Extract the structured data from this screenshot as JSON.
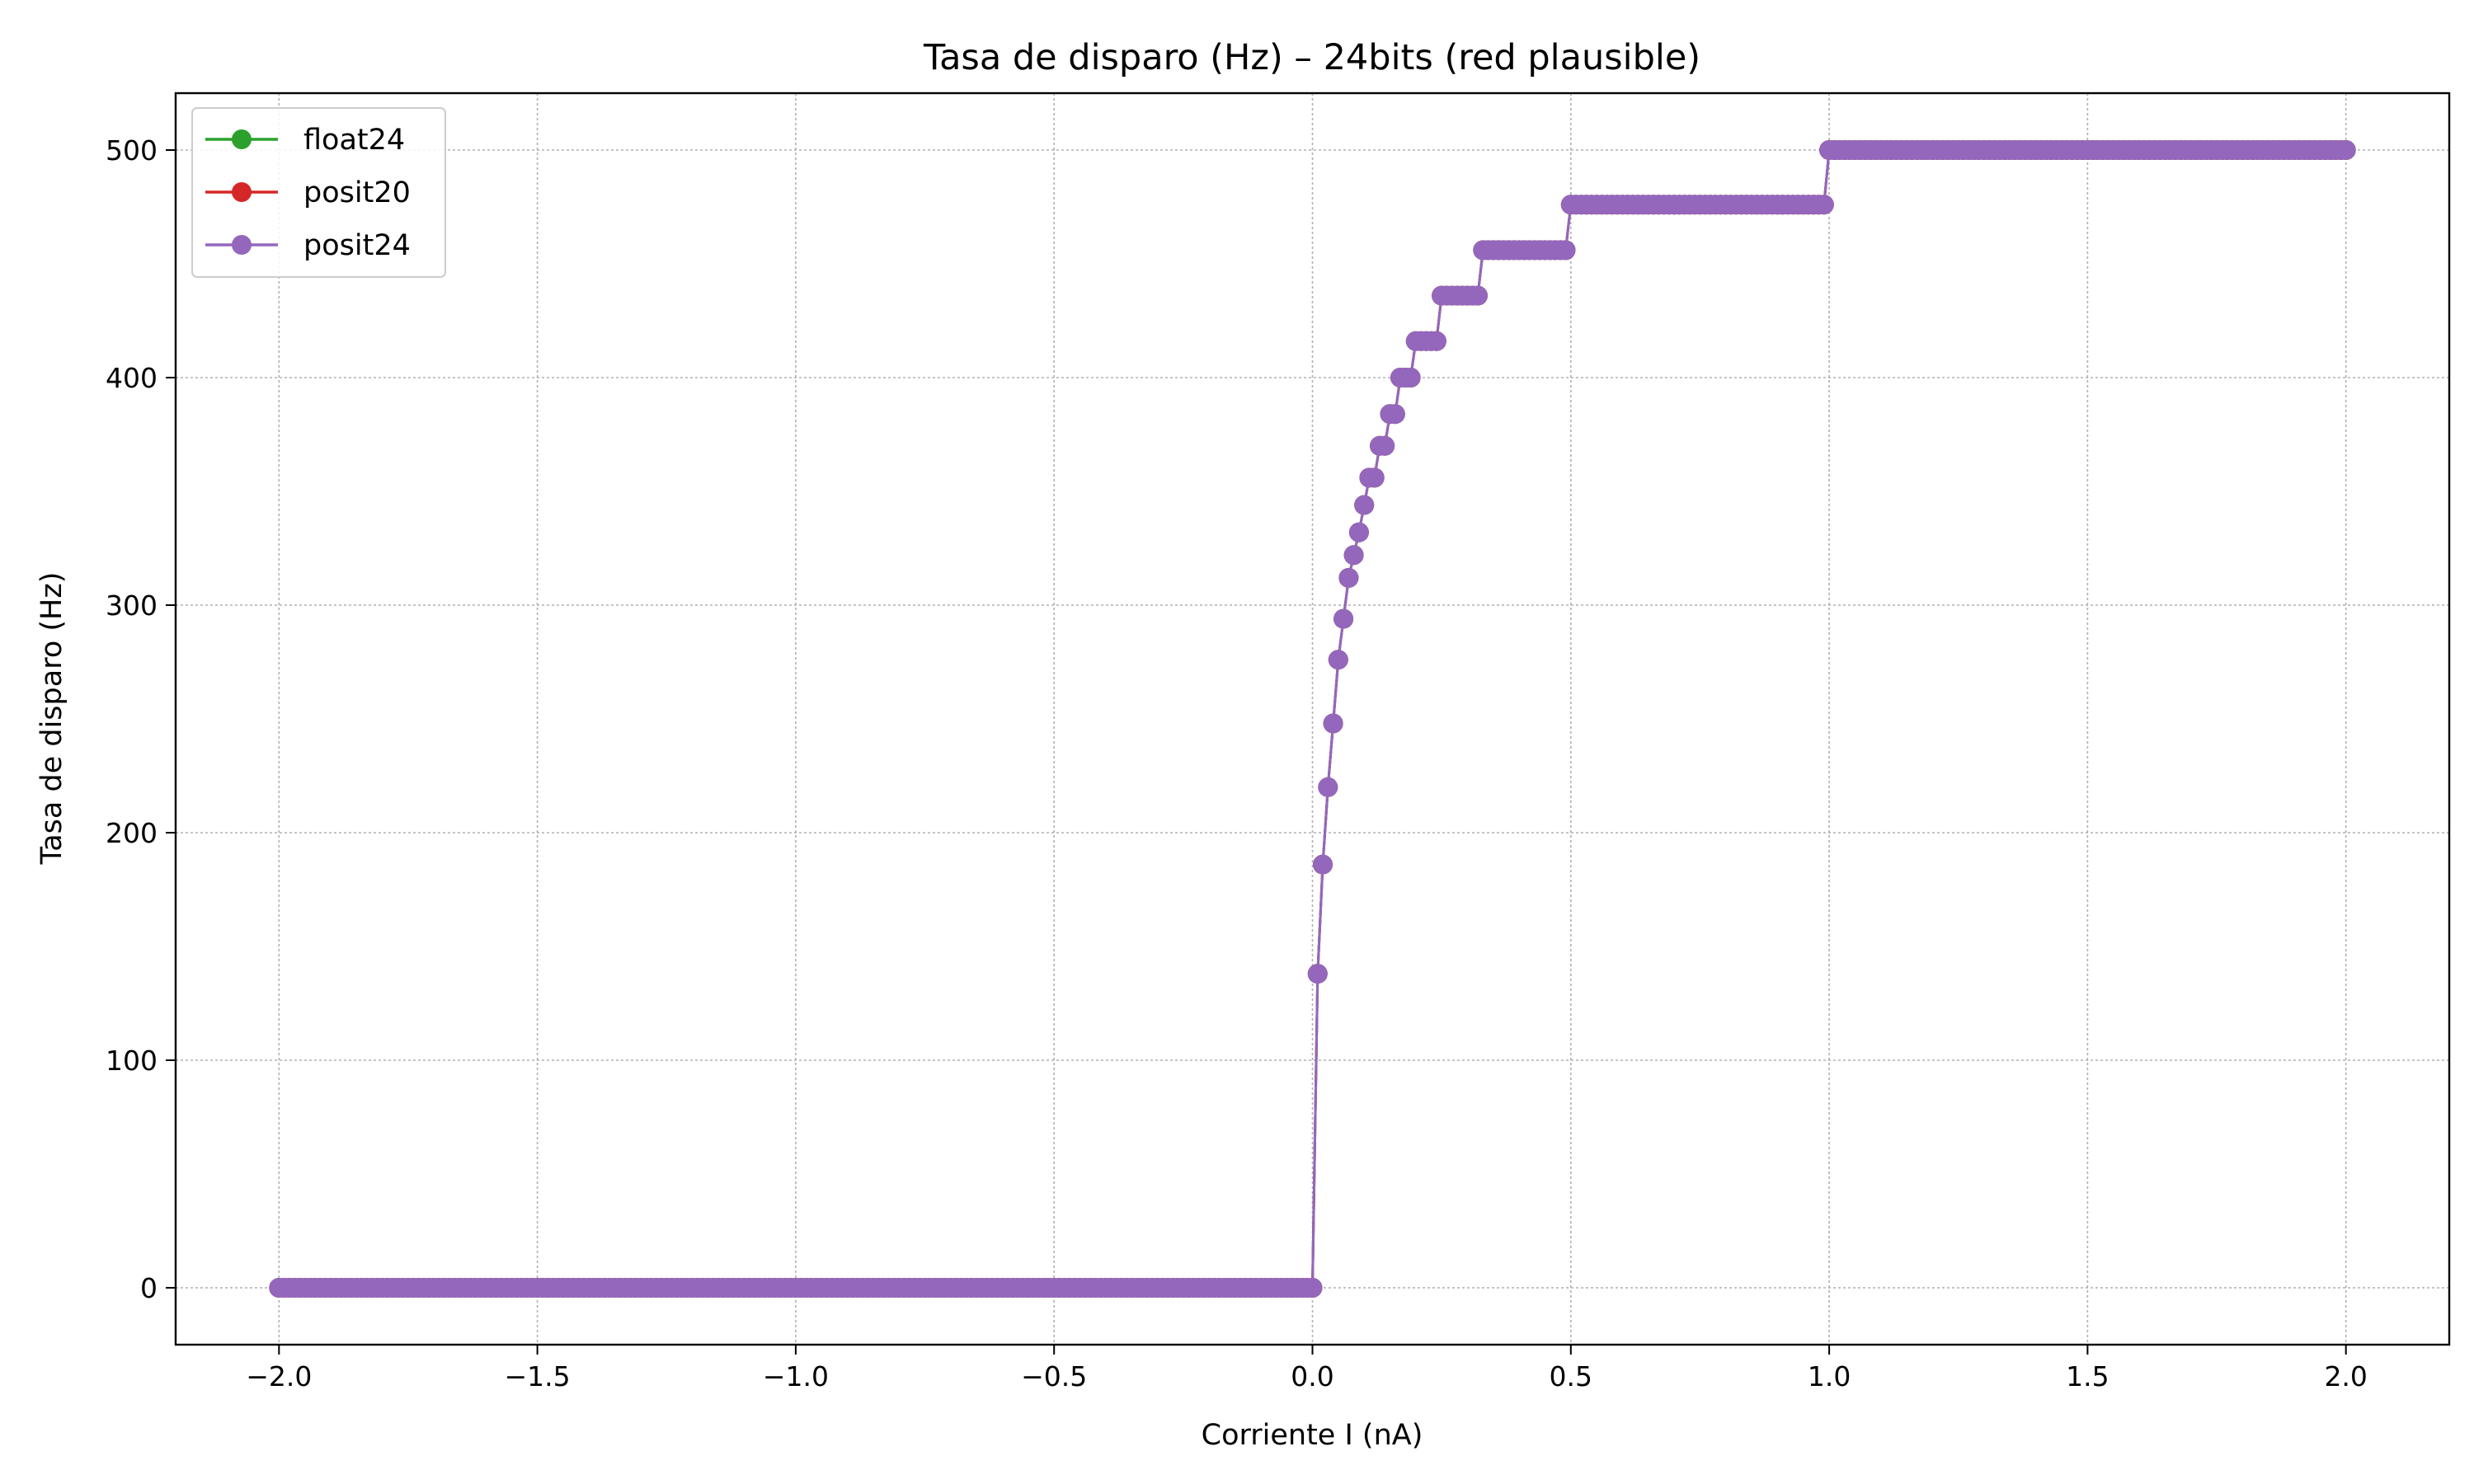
{
  "chart_data": {
    "type": "line",
    "title": "Tasa de disparo (Hz) – 24bits (red plausible)",
    "xlabel": "Corriente I (nA)",
    "ylabel": "Tasa de disparo (Hz)",
    "xlim": [
      -2.2,
      2.2
    ],
    "ylim": [
      -25,
      525
    ],
    "xticks": [
      -2.0,
      -1.5,
      -1.0,
      -0.5,
      0.0,
      0.5,
      1.0,
      1.5,
      2.0
    ],
    "xtick_labels": [
      "−2.0",
      "−1.5",
      "−1.0",
      "−0.5",
      "0.0",
      "0.5",
      "1.0",
      "1.5",
      "2.0"
    ],
    "yticks": [
      0,
      100,
      200,
      300,
      400,
      500
    ],
    "ytick_labels": [
      "0",
      "100",
      "200",
      "300",
      "400",
      "500"
    ],
    "grid": true,
    "legend_position": "top-left",
    "colors": {
      "float24": "#2ca02c",
      "posit20": "#d62728",
      "posit24": "#9467bd"
    },
    "steps": [
      [
        -2.0,
        0
      ],
      [
        0.0,
        0
      ],
      [
        0.01,
        138
      ],
      [
        0.02,
        186
      ],
      [
        0.03,
        220
      ],
      [
        0.04,
        248
      ],
      [
        0.05,
        276
      ],
      [
        0.06,
        294
      ],
      [
        0.07,
        312
      ],
      [
        0.08,
        322
      ],
      [
        0.09,
        332
      ],
      [
        0.1,
        344
      ],
      [
        0.11,
        356
      ],
      [
        0.13,
        370
      ],
      [
        0.15,
        384
      ],
      [
        0.17,
        400
      ],
      [
        0.2,
        416
      ],
      [
        0.25,
        436
      ],
      [
        0.33,
        456
      ],
      [
        0.5,
        476
      ],
      [
        1.0,
        500
      ],
      [
        2.0,
        500
      ]
    ],
    "series": [
      {
        "name": "float24",
        "color": "#2ca02c"
      },
      {
        "name": "posit20",
        "color": "#d62728"
      },
      {
        "name": "posit24",
        "color": "#9467bd"
      }
    ]
  }
}
